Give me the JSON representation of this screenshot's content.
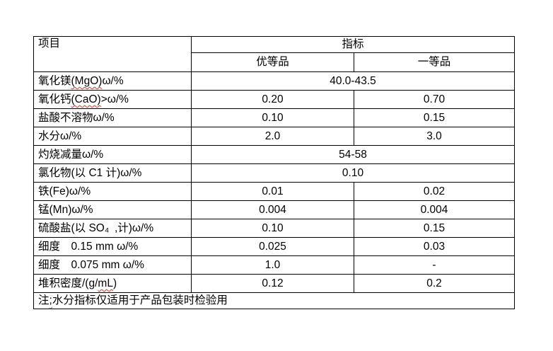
{
  "page": {
    "background": "#ffffff",
    "border_color": "#000000",
    "squiggle_color": "#ff2a1a"
  },
  "table": {
    "header": {
      "item": "项目",
      "index": "指标",
      "premium": "优等品",
      "first": "一等品"
    },
    "rows": [
      {
        "label": "氧化镁(MgO)ω/%",
        "squiggle": "(MgO)",
        "span": "40.0-43.5"
      },
      {
        "label": "氧化钙(CaO)>ω/%",
        "squiggle": "(CaO)",
        "premium": "0.20",
        "first": "0.70"
      },
      {
        "label": "盐酸不溶物ω/%",
        "premium": "0.10",
        "first": "0.15"
      },
      {
        "label": "水分ω/%",
        "premium": "2.0",
        "first": "3.0"
      },
      {
        "label": "灼烧减量ω/%",
        "span": "54-58"
      },
      {
        "label": "氯化物(以 C1 计)ω/%",
        "span": "0.10"
      },
      {
        "label": "铁(Fe)ω/%",
        "premium": "0.01",
        "first": "0.02"
      },
      {
        "label": "锰(Mn)ω/%",
        "premium": "0.004",
        "first": "0.004"
      },
      {
        "label": "硫酸盐(以 SO₄ ,计)ω/%",
        "premium": "0.10",
        "first": "0.15"
      },
      {
        "label": "细度　0.15 mm ω/%",
        "premium": "0.025",
        "first": "0.03"
      },
      {
        "label": "细度　0.075 mm ω/%",
        "premium": "1.0",
        "first": "-"
      },
      {
        "label": "堆积密度/(g/mL)",
        "squiggle": "mL",
        "premium": "0.12",
        "first": "0.2"
      }
    ],
    "note": {
      "text": "注;水分指标仅适用于产品包装时检验用",
      "squiggle": ";"
    }
  }
}
